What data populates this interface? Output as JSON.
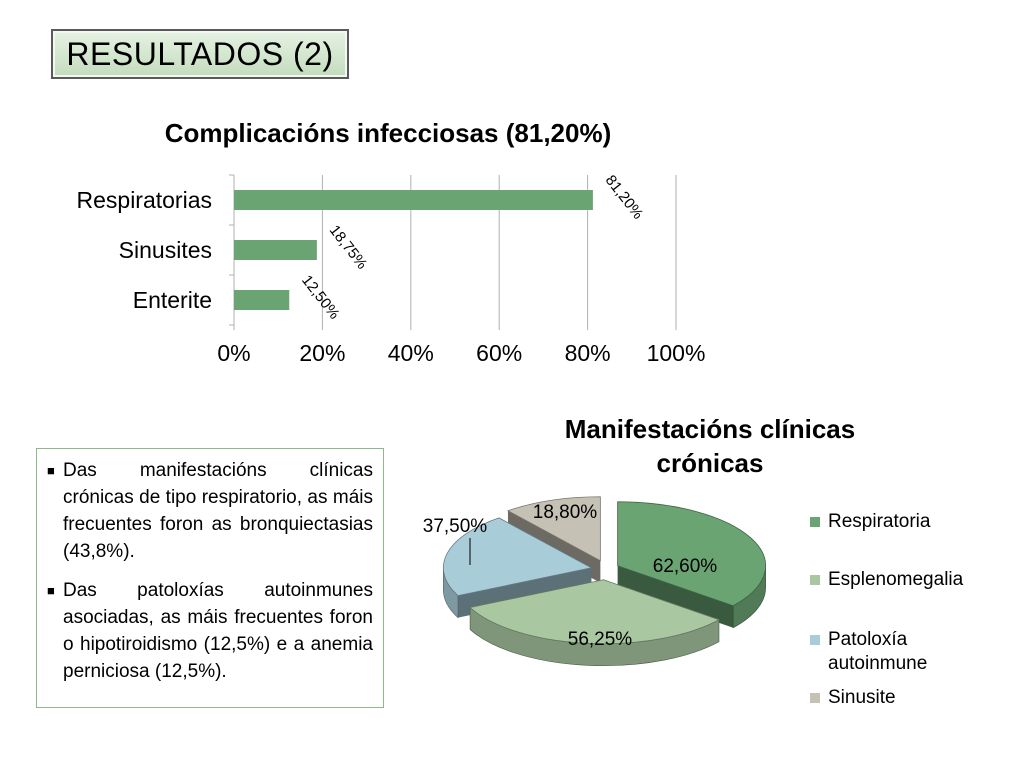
{
  "slide": {
    "title": "RESULTADOS (2)"
  },
  "colors": {
    "bar": "#6aa472",
    "axis": "#b0b0b0",
    "respiratoria": "#6aa472",
    "esplenomegalia": "#a9c8a2",
    "patoloxia": "#a8ccd8",
    "sinusite": "#c5c1b4"
  },
  "notes": [
    {
      "text": "Das manifestacións clínicas crónicas de tipo respiratorio, as máis frecuentes foron as bronquiectasias (43,8%)."
    },
    {
      "text": "Das patoloxías autoinmunes asociadas, as máis frecuentes foron o hipotiroidismo (12,5%) e a anemia perniciosa (12,5%)."
    }
  ],
  "chart_data": [
    {
      "type": "bar",
      "orientation": "horizontal",
      "title": "Complicacións infecciosas (81,20%)",
      "categories": [
        "Respiratorias",
        "Sinusites",
        "Enterite"
      ],
      "values": [
        81.2,
        18.75,
        12.5
      ],
      "data_labels": [
        "81,20%",
        "18,75%",
        "12,50%"
      ],
      "xlim": [
        0,
        100
      ],
      "xticks": [
        0,
        20,
        40,
        60,
        80,
        100
      ],
      "xtick_labels": [
        "0%",
        "20%",
        "40%",
        "60%",
        "80%",
        "100%"
      ],
      "grid": true
    },
    {
      "type": "pie",
      "title": "Manifestacións clínicas crónicas",
      "labels": [
        "Respiratoria",
        "Esplenomegalia",
        "Patoloxía autoinmune",
        "Sinusite"
      ],
      "legend_labels": [
        "Respiratoria",
        "Esplenomegalia",
        "Patoloxía\nautoinmune",
        "Sinusite"
      ],
      "values": [
        62.6,
        56.25,
        37.5,
        18.8
      ],
      "data_labels": [
        "62,60%",
        "56,25%",
        "37,50%",
        "18,80%"
      ],
      "legend": "right"
    }
  ]
}
